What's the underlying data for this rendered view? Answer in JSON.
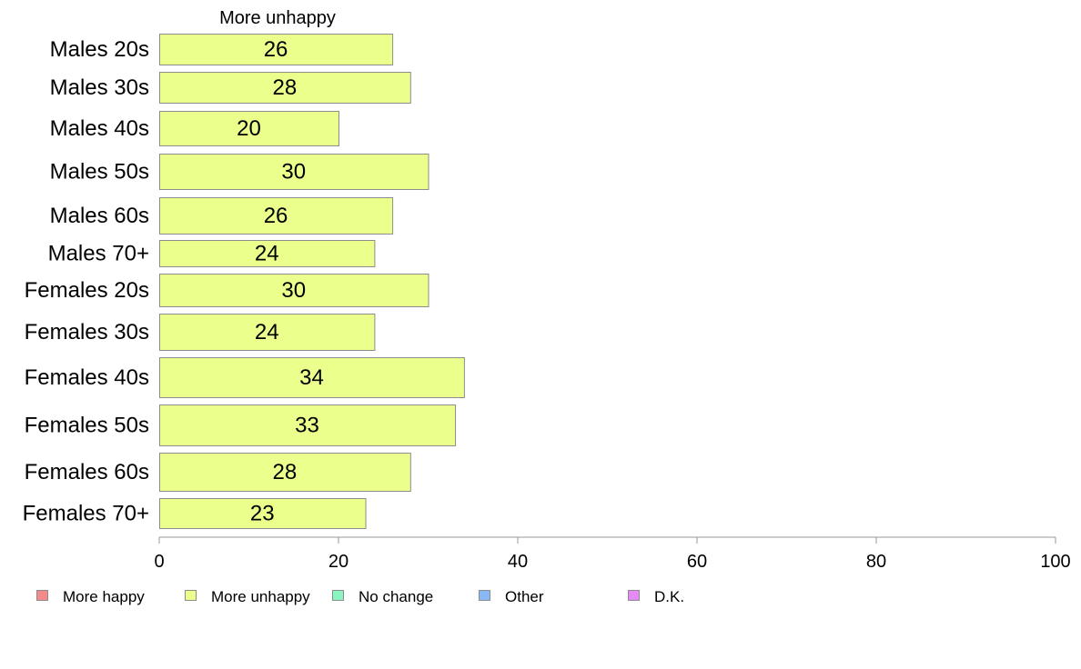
{
  "chart_data": {
    "type": "bar",
    "orientation": "horizontal",
    "column_header": "More unhappy",
    "categories": [
      "Males 20s",
      "Males 30s",
      "Males 40s",
      "Males 50s",
      "Males 60s",
      "Males 70+",
      "Females 20s",
      "Females 30s",
      "Females 40s",
      "Females 50s",
      "Females 60s",
      "Females 70+"
    ],
    "series": [
      {
        "name": "More unhappy",
        "color": "#ebff8c",
        "values": [
          26,
          28,
          20,
          30,
          26,
          24,
          30,
          24,
          34,
          33,
          28,
          23
        ],
        "labels": [
          "26",
          "28",
          "20",
          "30",
          "26",
          "24",
          "30",
          "24",
          "34",
          "33",
          "28",
          "23"
        ]
      }
    ],
    "xlim": [
      0,
      100
    ],
    "xticks": [
      0,
      20,
      40,
      60,
      80,
      100
    ],
    "xtick_labels": [
      "0",
      "20",
      "40",
      "60",
      "80",
      "100"
    ],
    "grid": false,
    "legend_position": "bottom",
    "legend": [
      {
        "label": "More happy",
        "color": "#f48a8a"
      },
      {
        "label": "More unhappy",
        "color": "#ebff8c"
      },
      {
        "label": "No change",
        "color": "#8af5bf"
      },
      {
        "label": "Other",
        "color": "#8ab8f5"
      },
      {
        "label": "D.K.",
        "color": "#e58af5"
      }
    ]
  }
}
